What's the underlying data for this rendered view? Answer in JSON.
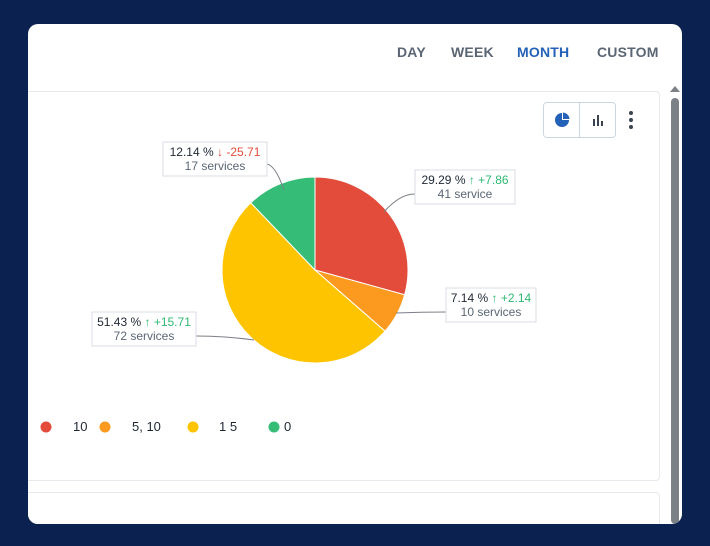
{
  "tabs": [
    {
      "label": "DAY",
      "active": false
    },
    {
      "label": "WEEK",
      "active": false
    },
    {
      "label": "MONTH",
      "active": true
    },
    {
      "label": "CUSTOM",
      "active": false
    }
  ],
  "view_toggle": {
    "selected": "pie-chart-icon",
    "options": [
      "pie-chart-icon",
      "bar-chart-icon"
    ]
  },
  "menu_icon": "more-vertical-icon",
  "chart_data": {
    "type": "pie",
    "slices": [
      {
        "percent_label": "29.29 %",
        "change": "+7.86",
        "direction": "up",
        "count_label": "41 service",
        "color": "#e34b3a",
        "value": 29.29
      },
      {
        "percent_label": "7.14 %",
        "change": "+2.14",
        "direction": "up",
        "count_label": "10 services",
        "color": "#fb9a1e",
        "value": 7.14
      },
      {
        "percent_label": "51.43 %",
        "change": "+15.71",
        "direction": "up",
        "count_label": "72 services",
        "color": "#ffc400",
        "value": 51.43
      },
      {
        "percent_label": "12.14 %",
        "change": "-25.71",
        "direction": "down",
        "count_label": "17 services",
        "color": "#35bd78",
        "value": 12.14
      }
    ],
    "legend": [
      {
        "color": "#e34b3a",
        "label": "10"
      },
      {
        "color": "#fb9a1e",
        "label": "5, 10"
      },
      {
        "color": "#ffc400",
        "label": "1 5"
      },
      {
        "color": "#35bd78",
        "label": "0"
      }
    ],
    "legend_placement": "bottom-left"
  },
  "colors": {
    "up": "#2eb872",
    "down": "#e34b3a",
    "accent": "#2461b8",
    "background": "#0b2150"
  }
}
